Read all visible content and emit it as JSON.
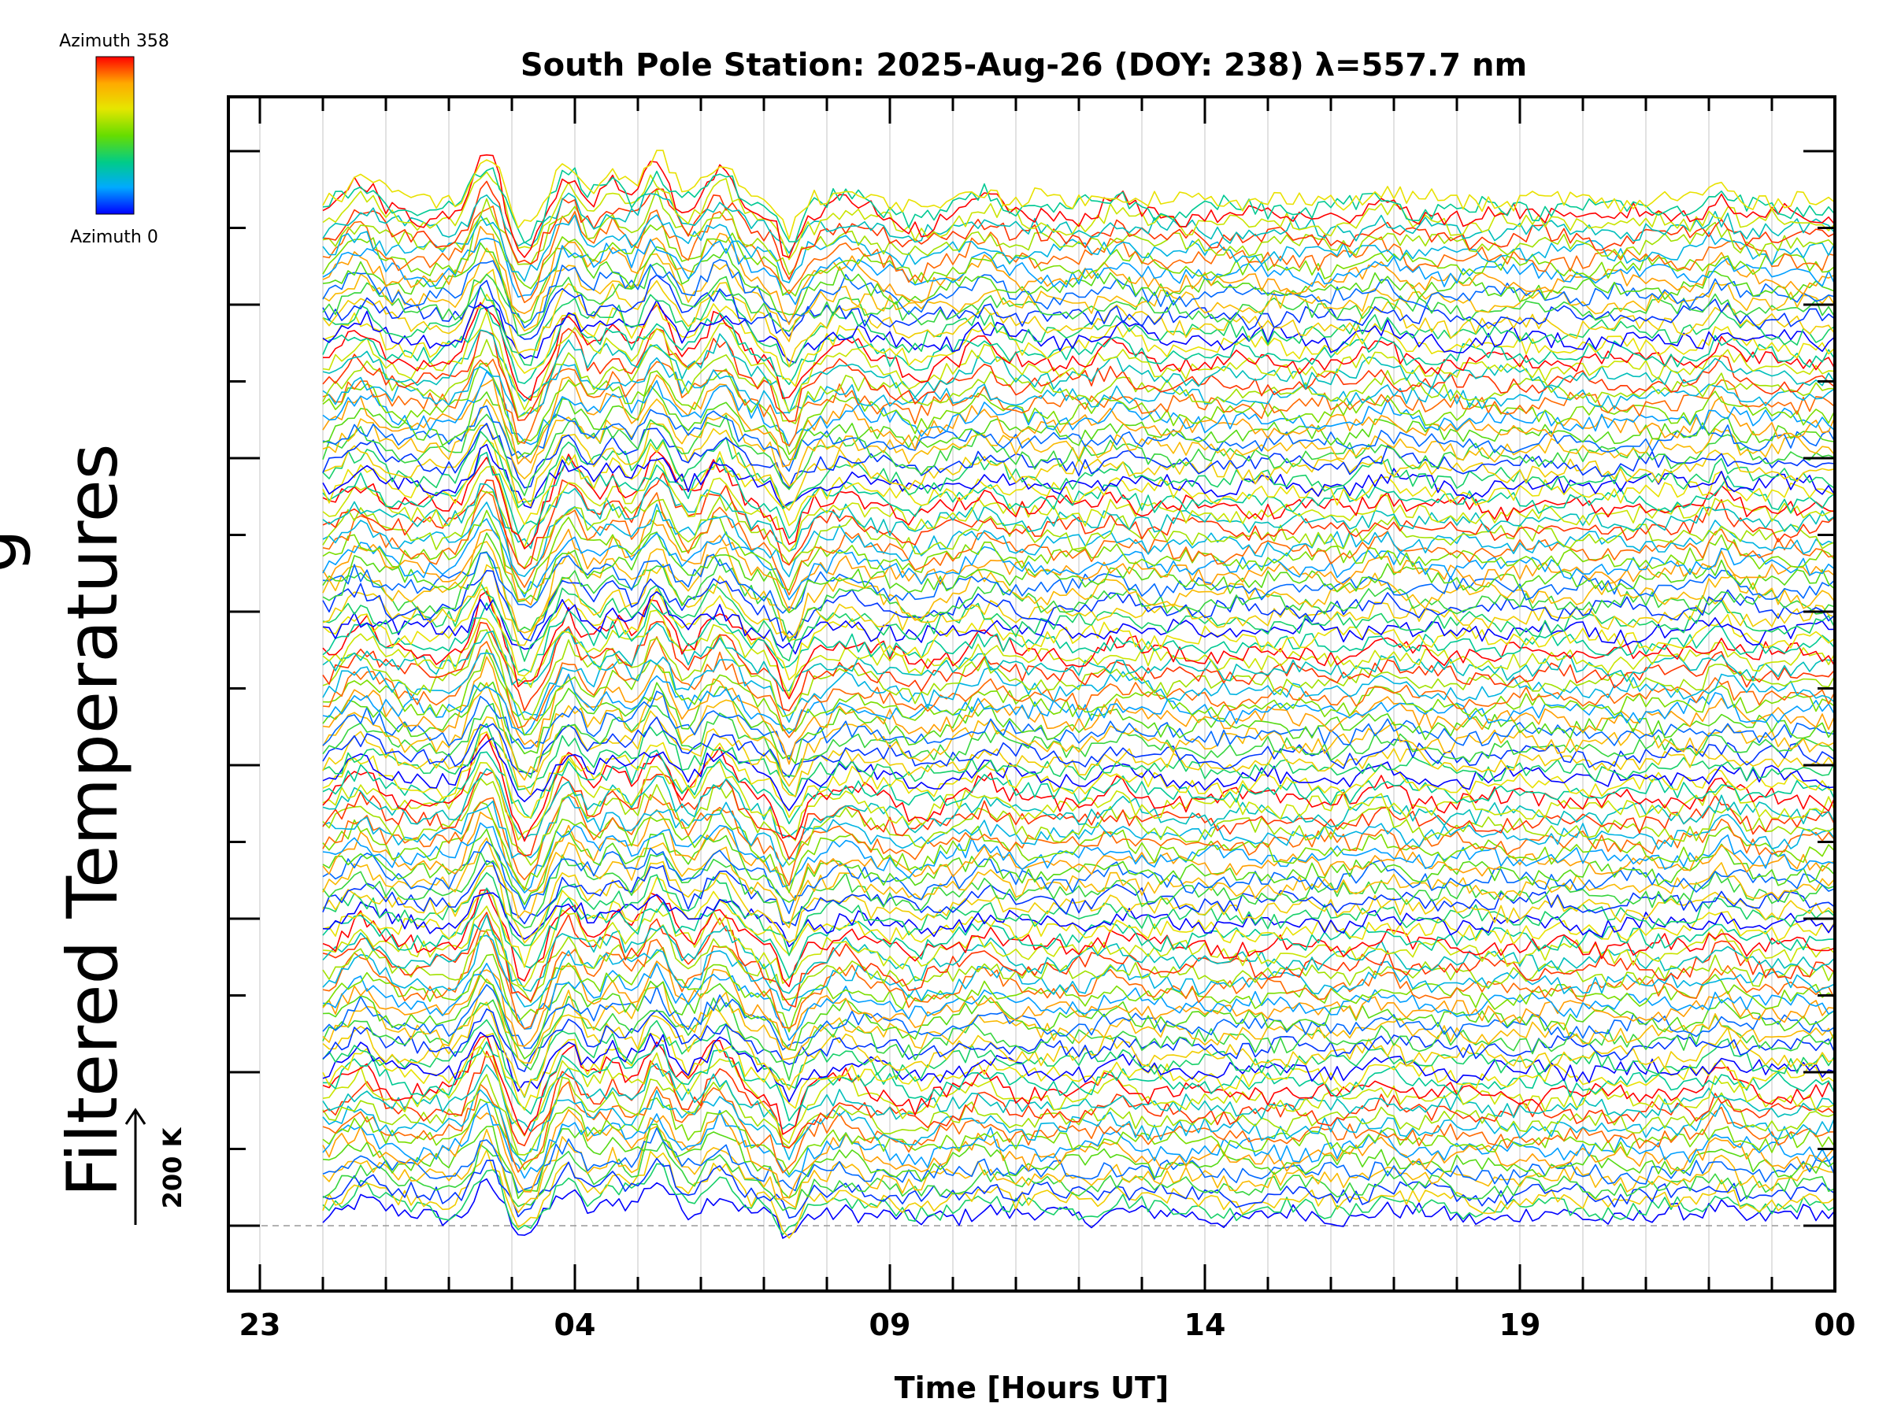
{
  "chart_data": {
    "type": "line",
    "title": "South Pole Station: 2025-Aug-26 (DOY: 238) λ=557.7 nm",
    "xlabel": "Time [Hours UT]",
    "ylabel": "Filtered Temperatures",
    "ylabel_partial": "g",
    "x_tick_labels": [
      "23",
      "04",
      "09",
      "14",
      "19",
      "00"
    ],
    "x_ticks_hours": [
      -1,
      4,
      9,
      14,
      19,
      24
    ],
    "xlim": [
      -1.5,
      24
    ],
    "data_x_range": [
      0,
      24
    ],
    "grid": true,
    "legend": {
      "position": "top-left",
      "type": "colorbar",
      "top_label": "Azimuth 358",
      "bottom_label": "Azimuth 0",
      "colors": [
        "#ff0000",
        "#ffaa00",
        "#e6e600",
        "#66dd00",
        "#00cc88",
        "#00aaff",
        "#0000ff"
      ]
    },
    "scale_bar": {
      "label": "200 K",
      "value_k": 200
    },
    "series_count": 140,
    "series_azimuth_range": [
      0,
      358
    ]
  }
}
